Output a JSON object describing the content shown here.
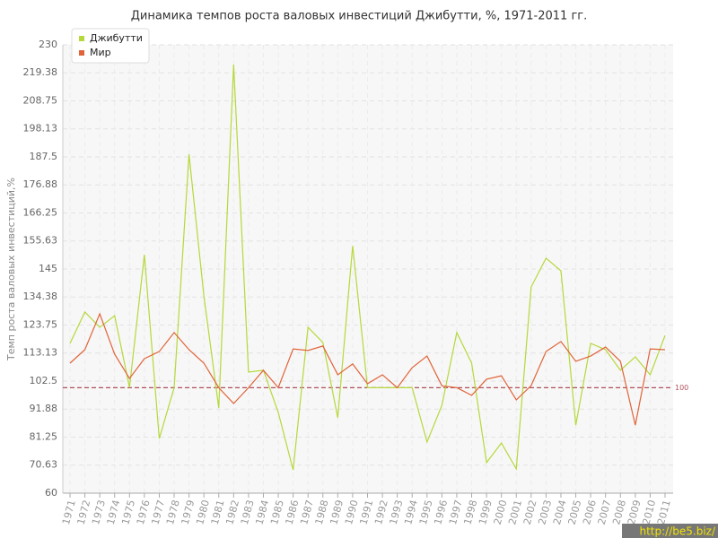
{
  "chart_data": {
    "type": "line",
    "title": "Динамика темпов роста валовых инвестиций Джибутти, %, 1971-2011 гг.",
    "y_label": "Темп роста валовых инвестиций,%",
    "categories": [
      "1971",
      "1972",
      "1973",
      "1974",
      "1975",
      "1976",
      "1977",
      "1978",
      "1979",
      "1980",
      "1981",
      "1982",
      "1983",
      "1984",
      "1985",
      "1986",
      "1987",
      "1988",
      "1989",
      "1990",
      "1991",
      "1992",
      "1993",
      "1994",
      "1995",
      "1996",
      "1997",
      "1998",
      "1999",
      "2000",
      "2001",
      "2002",
      "2003",
      "2004",
      "2005",
      "2006",
      "2007",
      "2008",
      "2009",
      "2010",
      "2011"
    ],
    "series": [
      {
        "name": "Джибутти",
        "color": "#b5d83a",
        "values": [
          116.8,
          128.7,
          122.9,
          127.3,
          100.1,
          150.4,
          80.7,
          100,
          188.5,
          134.8,
          92.3,
          222.5,
          105.9,
          106.6,
          90.6,
          68.8,
          122.9,
          117.1,
          88.6,
          153.8,
          100,
          100,
          100,
          100,
          79.4,
          93.3,
          120.9,
          109.3,
          71.6,
          79,
          69.2,
          138.2,
          149.1,
          144.3,
          85.8,
          116.8,
          114.4,
          106.6,
          111.7,
          104.9,
          119.8
        ]
      },
      {
        "name": "Мир",
        "color": "#e0643a",
        "values": [
          109.3,
          114.4,
          128,
          112.7,
          103.5,
          111,
          113.7,
          120.9,
          114.4,
          109.3,
          100,
          94,
          100,
          106.6,
          100,
          114.7,
          114.1,
          115.8,
          104.9,
          109,
          101.5,
          104.9,
          100,
          107.6,
          112,
          100.7,
          100,
          97.1,
          103.2,
          104.5,
          95.4,
          100.8,
          113.7,
          117.5,
          110,
          112,
          115.4,
          110,
          85.8,
          114.7,
          114.4
        ]
      }
    ],
    "ylim": [
      60,
      230
    ],
    "yticks": [
      60,
      70.63,
      81.25,
      91.88,
      102.5,
      113.13,
      123.75,
      134.38,
      145,
      155.63,
      166.25,
      176.88,
      187.5,
      198.13,
      208.75,
      219.38,
      230
    ],
    "grid": true,
    "reference_line": 100,
    "legend": "top-left",
    "watermark": "http://be5.biz/"
  }
}
